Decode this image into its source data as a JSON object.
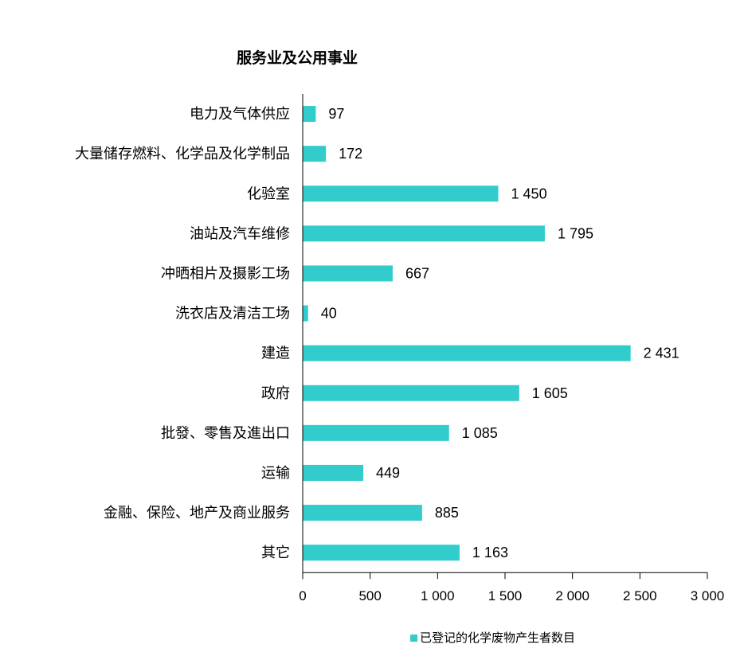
{
  "chart_data": {
    "type": "bar",
    "orientation": "horizontal",
    "title": "服务业及公用事业",
    "categories": [
      "电力及气体供应",
      "大量储存燃料、化学品及化学制品",
      "化验室",
      "油站及汽车维修",
      "冲晒相片及摄影工场",
      "洗衣店及清洁工场",
      "建造",
      "政府",
      "批發、零售及進出口",
      "运输",
      "金融、保险、地产及商业服务",
      "其它"
    ],
    "series": [
      {
        "name": "已登记的化学废物产生者数目",
        "values": [
          97,
          172,
          1450,
          1795,
          667,
          40,
          2431,
          1605,
          1085,
          449,
          885,
          1163
        ],
        "value_labels": [
          "97",
          "172",
          "1 450",
          "1 795",
          "667",
          "40",
          "2 431",
          "1 605",
          "1 085",
          "449",
          "885",
          "1 163"
        ],
        "color": "#33CCCC"
      }
    ],
    "xlim": [
      0,
      3000
    ],
    "x_ticks": [
      0,
      500,
      1000,
      1500,
      2000,
      2500,
      3000
    ],
    "x_tick_labels": [
      "0",
      "500",
      "1 000",
      "1 500",
      "2 000",
      "2 500",
      "3 000"
    ],
    "xlabel": "",
    "ylabel": "",
    "grid": false,
    "legend_position": "bottom"
  }
}
